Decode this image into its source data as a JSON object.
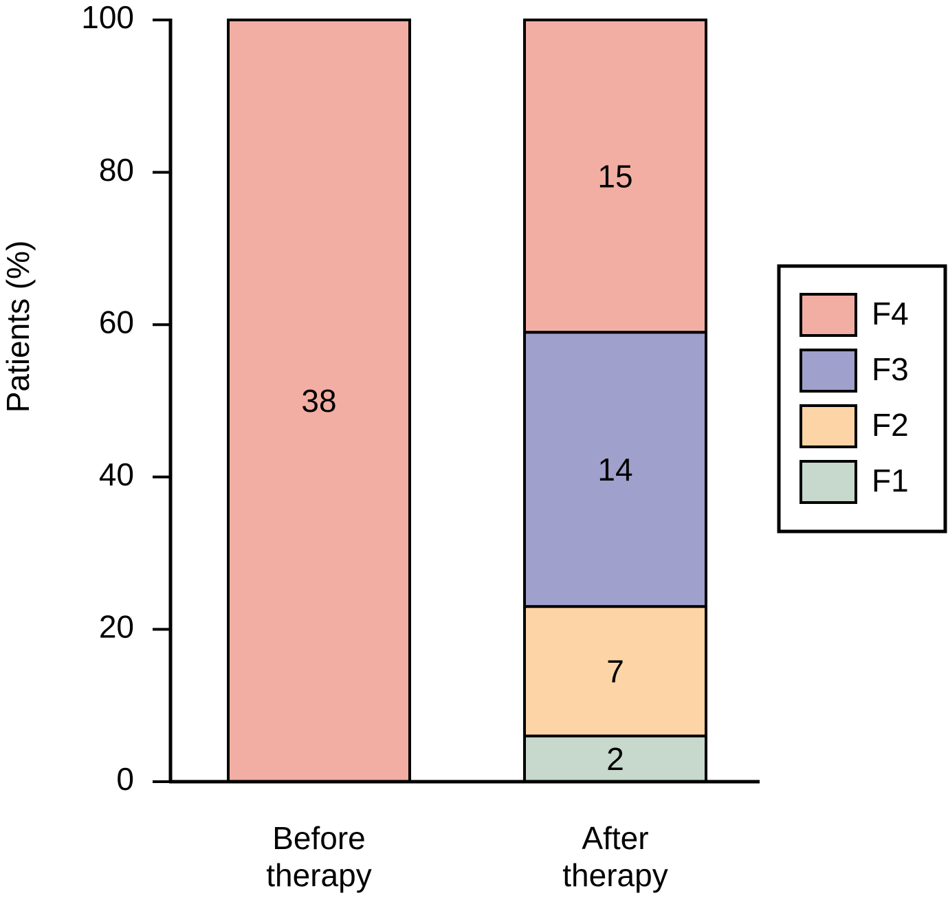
{
  "chart_data": {
    "type": "stacked-bar",
    "y_label": "Patients (%)",
    "categories": [
      "Before therapy",
      "After therapy"
    ],
    "ylim": [
      0,
      100
    ],
    "yticks": [
      0,
      20,
      40,
      60,
      80,
      100
    ],
    "legend": "right",
    "series": [
      {
        "name": "F1",
        "color": "#c6d9cc",
        "values": [
          null,
          6
        ],
        "counts": [
          null,
          2
        ]
      },
      {
        "name": "F2",
        "color": "#fdd4a5",
        "values": [
          null,
          17
        ],
        "counts": [
          null,
          7
        ]
      },
      {
        "name": "F3",
        "color": "#a0a0cc",
        "values": [
          null,
          36
        ],
        "counts": [
          null,
          14
        ]
      },
      {
        "name": "F4",
        "color": "#f2aea3",
        "values": [
          100,
          41
        ],
        "counts": [
          38,
          15
        ]
      }
    ]
  }
}
